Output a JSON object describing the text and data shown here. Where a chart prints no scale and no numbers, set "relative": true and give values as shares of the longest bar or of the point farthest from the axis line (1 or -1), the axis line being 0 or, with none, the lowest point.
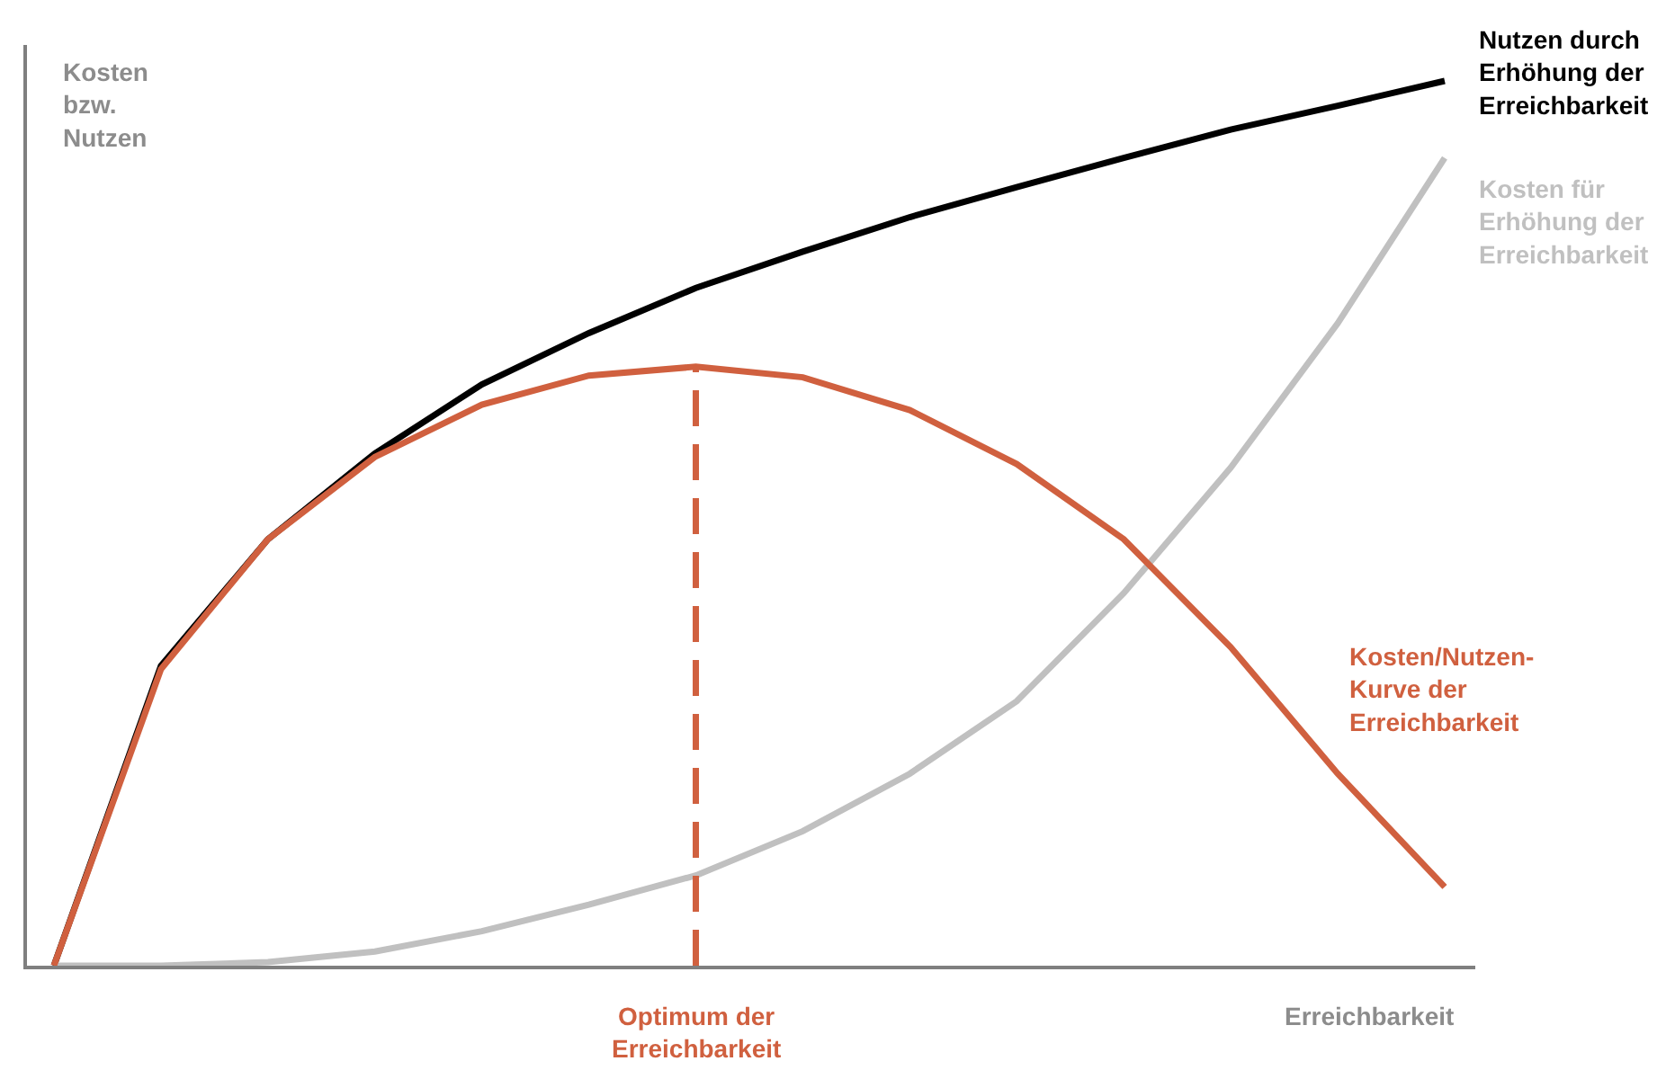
{
  "chart_data": {
    "type": "line",
    "relative": true,
    "legend": false,
    "marker": "none",
    "line_style": "solid",
    "ylabel": "Kosten\nbzw.\nNutzen",
    "xlabel": "Erreichbarkeit",
    "categories": [
      null,
      null,
      null,
      null,
      null,
      null,
      null,
      null,
      null,
      null,
      null,
      null,
      null,
      null
    ],
    "series": [
      {
        "name": "Nutzen durch\nErhöhung der\nErreichbarkeit",
        "color": "#000000",
        "values": [
          0,
          0.339,
          0.482,
          0.579,
          0.657,
          0.715,
          0.766,
          0.807,
          0.846,
          0.88,
          0.913,
          0.945,
          0.972,
          1
        ]
      },
      {
        "name": "Kosten für\nErhöhung der\nErreichbarkeit",
        "color": "#c0c0c0",
        "values": [
          0,
          0,
          0.004,
          0.016,
          0.039,
          0.069,
          0.102,
          0.152,
          0.217,
          0.299,
          0.421,
          0.563,
          0.726,
          0.913
        ]
      },
      {
        "name": "Kosten/Nutzen-\nKurve der\nErreichbarkeit",
        "color": "#d0603f",
        "values": [
          0,
          0.335,
          0.482,
          0.575,
          0.634,
          0.667,
          0.677,
          0.665,
          0.628,
          0.567,
          0.482,
          0.36,
          0.217,
          0.089
        ]
      }
    ],
    "annotations": [
      "Optimum der\nErreichbarkeit"
    ]
  }
}
